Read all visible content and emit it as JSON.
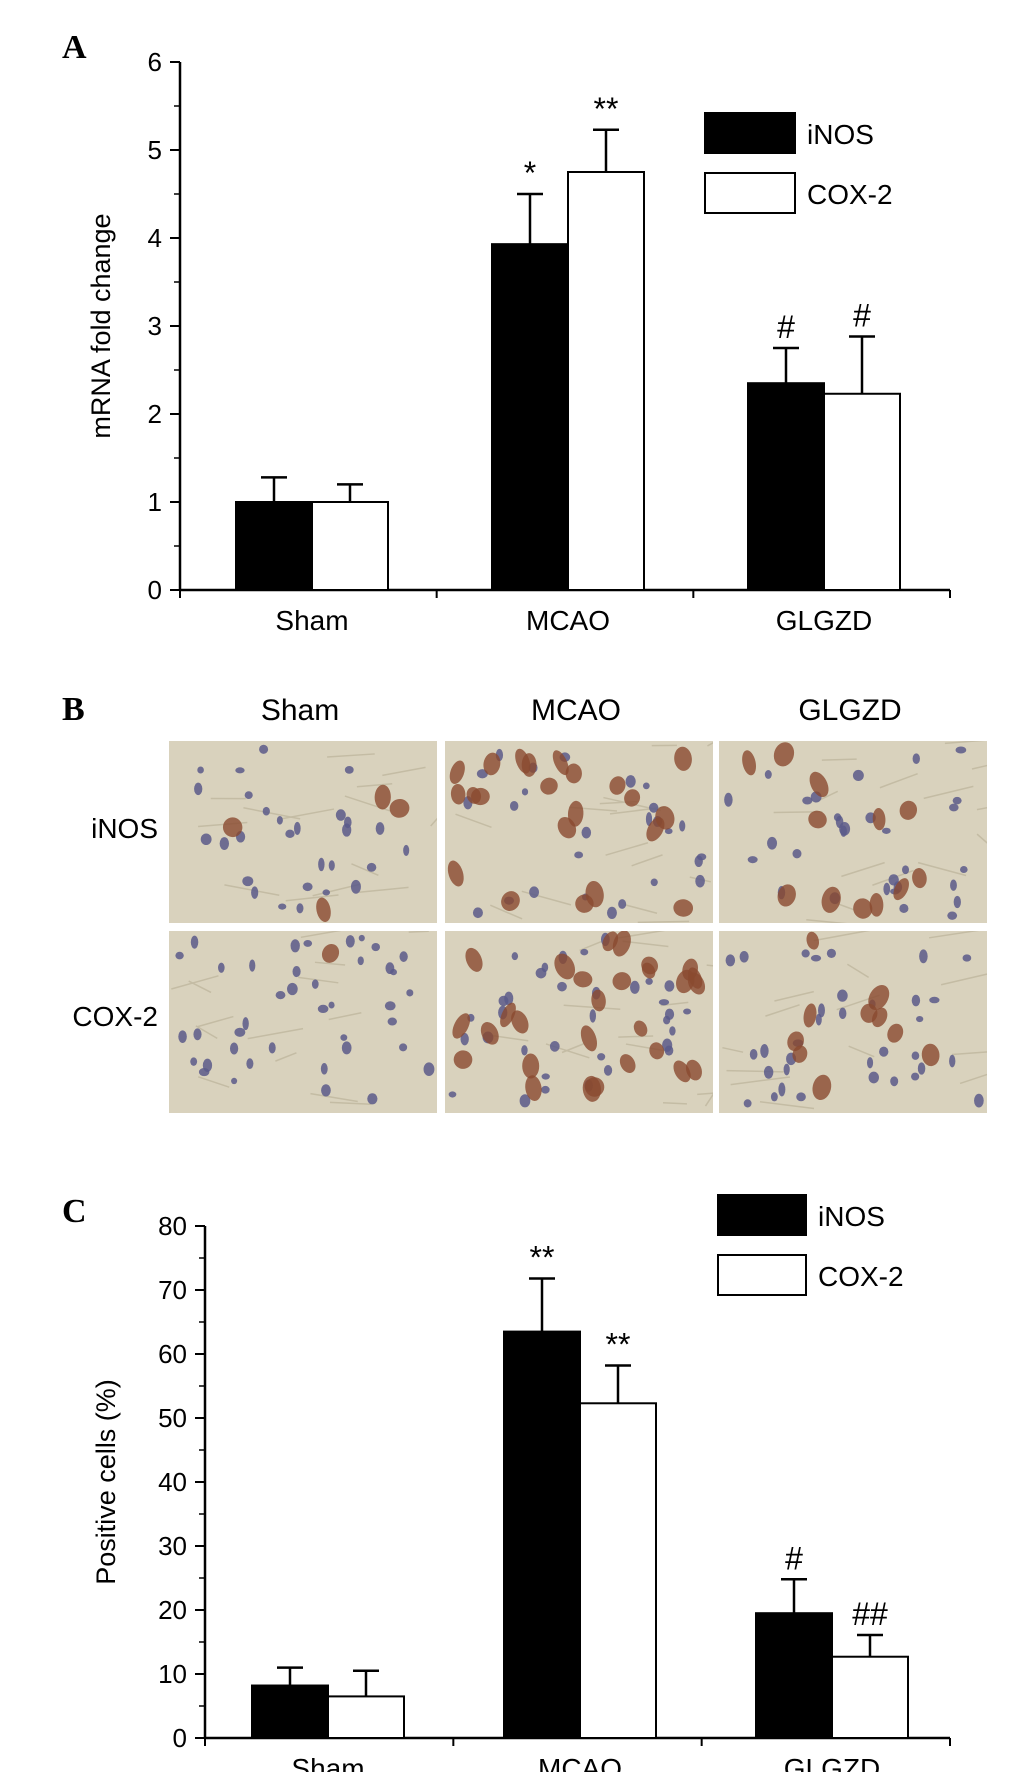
{
  "panels": {
    "a": {
      "letter": "A"
    },
    "b": {
      "letter": "B"
    },
    "c": {
      "letter": "C"
    }
  },
  "chart_data": [
    {
      "id": "A",
      "type": "bar",
      "categories": [
        "Sham",
        "MCAO",
        "GLGZD"
      ],
      "ylabel": "mRNA fold change",
      "xlabel": "",
      "ylim": [
        0,
        6
      ],
      "yticks": [
        0,
        1,
        2,
        3,
        4,
        5,
        6
      ],
      "legend_position": "top-right",
      "series": [
        {
          "name": "iNOS",
          "color": "#000000",
          "values": [
            1.0,
            3.93,
            2.35
          ],
          "errors": [
            0.28,
            0.57,
            0.4
          ],
          "annotations": [
            "",
            "*",
            "#"
          ]
        },
        {
          "name": "COX-2",
          "color": "#ffffff",
          "values": [
            1.0,
            4.75,
            2.23
          ],
          "errors": [
            0.2,
            0.48,
            0.65
          ],
          "annotations": [
            "",
            "**",
            "#"
          ]
        }
      ]
    },
    {
      "id": "C",
      "type": "bar",
      "categories": [
        "Sham",
        "MCAO",
        "GLGZD"
      ],
      "ylabel": "Positive cells (%)",
      "xlabel": "",
      "ylim": [
        0,
        80
      ],
      "yticks": [
        0,
        10,
        20,
        30,
        40,
        50,
        60,
        70,
        80
      ],
      "legend_position": "top-right",
      "series": [
        {
          "name": "iNOS",
          "color": "#000000",
          "values": [
            8.2,
            63.5,
            19.5
          ],
          "errors": [
            2.8,
            8.3,
            5.3
          ],
          "annotations": [
            "",
            "**",
            "#"
          ]
        },
        {
          "name": "COX-2",
          "color": "#ffffff",
          "values": [
            6.5,
            52.3,
            12.7
          ],
          "errors": [
            4.0,
            5.9,
            3.4
          ],
          "annotations": [
            "",
            "**",
            "##"
          ]
        }
      ]
    }
  ],
  "micrographs": {
    "columns": [
      "Sham",
      "MCAO",
      "GLGZD"
    ],
    "rows": [
      "iNOS",
      "COX-2"
    ],
    "background_color": "#d9d2bd",
    "nuclei_color": "#5a5a8a",
    "positive_cell_color": "#8a4a30"
  }
}
